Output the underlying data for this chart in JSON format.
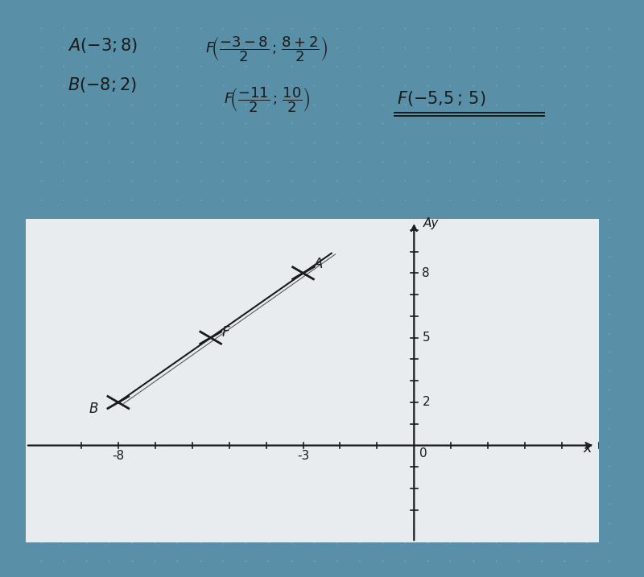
{
  "bg_color": "#5a8fa8",
  "page_color": "#e8ecee",
  "dot_color": "#9ab0b8",
  "text_color": "#1a1a1a",
  "point_A": [
    -3,
    8
  ],
  "point_B": [
    -8,
    2
  ],
  "point_F": [
    -5.5,
    5
  ],
  "axis_xlim": [
    -10.5,
    5.0
  ],
  "axis_ylim": [
    -4.5,
    10.5
  ],
  "x_tick_labels": [
    [
      -8,
      "-8"
    ],
    [
      -3,
      "-3"
    ]
  ],
  "y_tick_labels": [
    [
      2,
      "2"
    ],
    [
      5,
      "5"
    ],
    [
      8,
      "8"
    ]
  ],
  "label_A": "A",
  "label_B": "B",
  "label_F": "F",
  "label_x_axis": "x",
  "label_y_axis": "Ay",
  "label_origin": "0"
}
